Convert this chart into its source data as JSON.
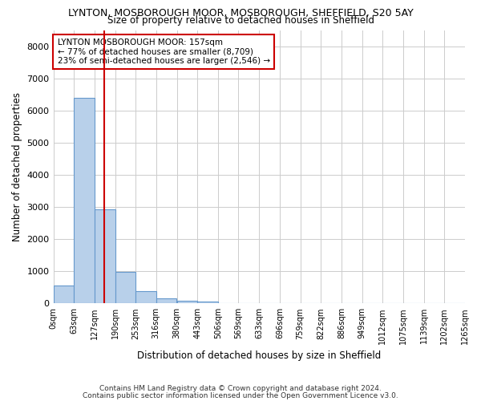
{
  "title1": "LYNTON, MOSBOROUGH MOOR, MOSBOROUGH, SHEFFIELD, S20 5AY",
  "title2": "Size of property relative to detached houses in Sheffield",
  "xlabel": "Distribution of detached houses by size in Sheffield",
  "ylabel": "Number of detached properties",
  "annotation_line1": "LYNTON MOSBOROUGH MOOR: 157sqm",
  "annotation_line2": "← 77% of detached houses are smaller (8,709)",
  "annotation_line3": "23% of semi-detached houses are larger (2,546) →",
  "property_size_sqm": 157,
  "bin_edges": [
    0,
    63,
    127,
    190,
    253,
    316,
    380,
    443,
    506,
    569,
    633,
    696,
    759,
    822,
    886,
    949,
    1012,
    1075,
    1139,
    1202,
    1265
  ],
  "bar_heights": [
    560,
    6400,
    2920,
    970,
    370,
    165,
    90,
    55,
    0,
    0,
    0,
    0,
    0,
    0,
    0,
    0,
    0,
    0,
    0,
    0
  ],
  "bar_color": "#b8d0ea",
  "bar_edge_color": "#6699cc",
  "vline_color": "#cc0000",
  "vline_x": 157,
  "background_color": "#ffffff",
  "grid_color": "#cccccc",
  "footer_line1": "Contains HM Land Registry data © Crown copyright and database right 2024.",
  "footer_line2": "Contains public sector information licensed under the Open Government Licence v3.0.",
  "ylim": [
    0,
    8500
  ],
  "yticks": [
    0,
    1000,
    2000,
    3000,
    4000,
    5000,
    6000,
    7000,
    8000
  ],
  "annotation_box_color": "#ffffff",
  "annotation_box_edge": "#cc0000"
}
